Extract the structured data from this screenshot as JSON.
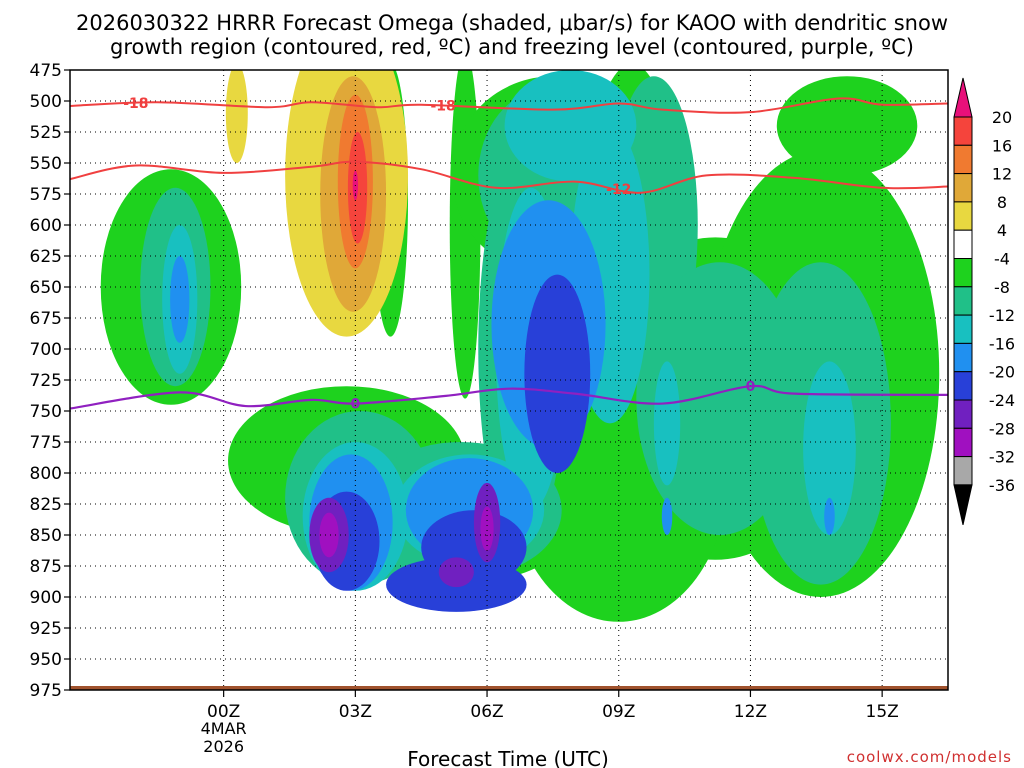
{
  "chart_data": {
    "type": "heatmap",
    "title_line1": "2026030322 HRRR Forecast Omega (shaded, μbar/s) for KAOO with dendritic snow",
    "title_line2": "growth region (contoured, red, ºC) and freezing level (contoured, purple, ºC)",
    "xlabel": "Forecast Time (UTC)",
    "credit": "coolwx.com/models",
    "y_axis": {
      "ticks": [
        475,
        500,
        525,
        550,
        575,
        600,
        625,
        650,
        675,
        700,
        725,
        750,
        775,
        800,
        825,
        850,
        875,
        900,
        925,
        950,
        975
      ],
      "range": [
        475,
        975
      ],
      "inverted": true
    },
    "x_axis": {
      "range_hours": [
        -3.5,
        16.5
      ],
      "ticks": [
        {
          "hour": 0,
          "label": "00Z",
          "sub1": "4MAR",
          "sub2": "2026"
        },
        {
          "hour": 3,
          "label": "03Z"
        },
        {
          "hour": 6,
          "label": "06Z"
        },
        {
          "hour": 9,
          "label": "09Z"
        },
        {
          "hour": 12,
          "label": "12Z"
        },
        {
          "hour": 15,
          "label": "15Z"
        }
      ]
    },
    "grid": true,
    "colorbar": {
      "labels": [
        "20",
        "16",
        "12",
        "8",
        "4",
        "-4",
        "-8",
        "-12",
        "-16",
        "-20",
        "-24",
        "-28",
        "-32",
        "-36"
      ],
      "colors": [
        "#e8107a",
        "#f5443c",
        "#f07a30",
        "#e0a838",
        "#e8d840",
        "#ffffff",
        "#1ed21e",
        "#20c088",
        "#18c0c0",
        "#2090f0",
        "#2840d8",
        "#7020c0",
        "#a010c0",
        "#a8a8a8",
        "#000000"
      ]
    },
    "omega_shading": [
      {
        "level": -4,
        "color": "#1ed21e",
        "blobs": [
          [
            -1.2,
            650,
            1.6,
            95
          ],
          [
            2.8,
            790,
            2.7,
            60
          ],
          [
            5.2,
            840,
            2.8,
            50
          ],
          [
            3.8,
            580,
            0.4,
            110
          ],
          [
            5.5,
            600,
            0.35,
            140
          ],
          [
            7.5,
            560,
            2.3,
            80
          ],
          [
            9.3,
            640,
            1.2,
            170
          ],
          [
            11.2,
            740,
            2.9,
            130
          ],
          [
            13.6,
            720,
            2.7,
            180
          ],
          [
            14.2,
            520,
            1.6,
            40
          ],
          [
            9.0,
            800,
            2.5,
            120
          ]
        ]
      },
      {
        "level": -8,
        "color": "#20c088",
        "blobs": [
          [
            -1.1,
            650,
            0.8,
            80
          ],
          [
            3.1,
            820,
            1.7,
            70
          ],
          [
            5.4,
            830,
            2.3,
            55
          ],
          [
            7.4,
            560,
            1.6,
            70
          ],
          [
            9.8,
            600,
            1.0,
            120
          ],
          [
            11.3,
            740,
            1.9,
            110
          ],
          [
            13.6,
            760,
            1.6,
            130
          ],
          [
            6.8,
            700,
            1.0,
            160
          ]
        ]
      },
      {
        "level": -12,
        "color": "#18c0c0",
        "blobs": [
          [
            -1.0,
            660,
            0.4,
            60
          ],
          [
            3.0,
            835,
            1.2,
            60
          ],
          [
            5.6,
            830,
            1.7,
            45
          ],
          [
            7.9,
            520,
            1.5,
            45
          ],
          [
            8.8,
            640,
            0.9,
            120
          ],
          [
            10.1,
            760,
            0.3,
            50
          ],
          [
            13.8,
            780,
            0.6,
            70
          ],
          [
            7.0,
            700,
            0.8,
            130
          ]
        ]
      },
      {
        "level": -16,
        "color": "#2090f0",
        "blobs": [
          [
            -1.0,
            660,
            0.22,
            35
          ],
          [
            2.9,
            840,
            0.95,
            55
          ],
          [
            5.6,
            830,
            1.45,
            42
          ],
          [
            7.4,
            680,
            1.3,
            100
          ],
          [
            10.1,
            835,
            0.12,
            15
          ],
          [
            13.8,
            835,
            0.12,
            15
          ]
        ]
      },
      {
        "level": -20,
        "color": "#2840d8",
        "blobs": [
          [
            2.8,
            855,
            0.75,
            40
          ],
          [
            5.7,
            860,
            1.2,
            30
          ],
          [
            7.6,
            720,
            0.75,
            80
          ],
          [
            5.3,
            890,
            1.6,
            22
          ]
        ]
      },
      {
        "level": -24,
        "color": "#7020c0",
        "blobs": [
          [
            2.4,
            850,
            0.45,
            30
          ],
          [
            6.0,
            840,
            0.3,
            32
          ],
          [
            5.3,
            880,
            0.4,
            12
          ]
        ]
      },
      {
        "level": -28,
        "color": "#a010c0",
        "blobs": [
          [
            2.4,
            850,
            0.22,
            18
          ],
          [
            6.0,
            845,
            0.15,
            18
          ]
        ]
      },
      {
        "level": 4,
        "color": "#e8d840",
        "blobs": [
          [
            2.8,
            560,
            1.4,
            130
          ],
          [
            0.3,
            510,
            0.25,
            40
          ]
        ]
      },
      {
        "level": 8,
        "color": "#e0a838",
        "blobs": [
          [
            2.95,
            575,
            0.75,
            95
          ]
        ]
      },
      {
        "level": 12,
        "color": "#f07a30",
        "blobs": [
          [
            3.0,
            565,
            0.4,
            70
          ]
        ]
      },
      {
        "level": 16,
        "color": "#f5443c",
        "blobs": [
          [
            3.05,
            570,
            0.22,
            45
          ]
        ]
      },
      {
        "level": 20,
        "color": "#e8107a",
        "blobs": [
          [
            3.0,
            568,
            0.06,
            12
          ]
        ]
      }
    ],
    "dgz_contours": [
      {
        "label": "-18",
        "label_at_hour": -2.0,
        "points": [
          [
            -3.5,
            504
          ],
          [
            -1.5,
            501
          ],
          [
            1,
            505
          ],
          [
            2,
            501
          ],
          [
            3.5,
            505
          ],
          [
            4.5,
            503
          ],
          [
            7.5,
            507
          ],
          [
            9,
            502
          ],
          [
            10,
            507
          ],
          [
            12,
            509
          ],
          [
            14,
            498
          ],
          [
            15,
            503
          ],
          [
            16.5,
            502
          ]
        ]
      },
      {
        "label": "-18",
        "label_at_hour": 5.0,
        "points": []
      },
      {
        "label": "-12",
        "label_at_hour": null,
        "points": [
          [
            -3.5,
            563
          ],
          [
            -2,
            552
          ],
          [
            0,
            558
          ],
          [
            2,
            553
          ],
          [
            3,
            549
          ],
          [
            4.5,
            555
          ],
          [
            6.2,
            570
          ],
          [
            8,
            565
          ],
          [
            9.5,
            574
          ],
          [
            11,
            560
          ],
          [
            13,
            562
          ],
          [
            15,
            570
          ],
          [
            16.5,
            569
          ]
        ]
      },
      {
        "label": "-12",
        "label_at_hour": 9.0,
        "points": []
      }
    ],
    "freezing_level": {
      "label": "0",
      "label_at_hours": [
        3.0,
        12.0
      ],
      "points": [
        [
          -3.5,
          748
        ],
        [
          -1,
          735
        ],
        [
          0.5,
          746
        ],
        [
          2,
          741
        ],
        [
          3,
          744
        ],
        [
          5,
          738
        ],
        [
          6.5,
          732
        ],
        [
          8,
          736
        ],
        [
          10,
          744
        ],
        [
          12,
          730
        ],
        [
          13,
          736
        ],
        [
          16.5,
          737
        ]
      ]
    }
  }
}
